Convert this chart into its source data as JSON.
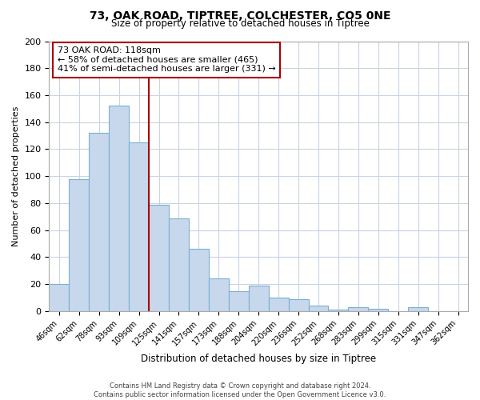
{
  "title": "73, OAK ROAD, TIPTREE, COLCHESTER, CO5 0NE",
  "subtitle": "Size of property relative to detached houses in Tiptree",
  "xlabel": "Distribution of detached houses by size in Tiptree",
  "ylabel": "Number of detached properties",
  "bar_labels": [
    "46sqm",
    "62sqm",
    "78sqm",
    "93sqm",
    "109sqm",
    "125sqm",
    "141sqm",
    "157sqm",
    "173sqm",
    "188sqm",
    "204sqm",
    "220sqm",
    "236sqm",
    "252sqm",
    "268sqm",
    "283sqm",
    "299sqm",
    "315sqm",
    "331sqm",
    "347sqm",
    "362sqm"
  ],
  "bar_values": [
    20,
    98,
    132,
    152,
    125,
    79,
    69,
    46,
    24,
    15,
    19,
    10,
    9,
    4,
    1,
    3,
    2,
    0,
    3,
    0,
    0
  ],
  "bar_color": "#c8d8ec",
  "bar_edge_color": "#7aafd4",
  "vline_color": "#aa0000",
  "annotation_line1": "73 OAK ROAD: 118sqm",
  "annotation_line2": "← 58% of detached houses are smaller (465)",
  "annotation_line3": "41% of semi-detached houses are larger (331) →",
  "annotation_box_color": "#ffffff",
  "annotation_box_edge": "#aa0000",
  "ylim": [
    0,
    200
  ],
  "yticks": [
    0,
    20,
    40,
    60,
    80,
    100,
    120,
    140,
    160,
    180,
    200
  ],
  "footer_line1": "Contains HM Land Registry data © Crown copyright and database right 2024.",
  "footer_line2": "Contains public sector information licensed under the Open Government Licence v3.0.",
  "background_color": "#ffffff",
  "grid_color": "#c8d4e4"
}
